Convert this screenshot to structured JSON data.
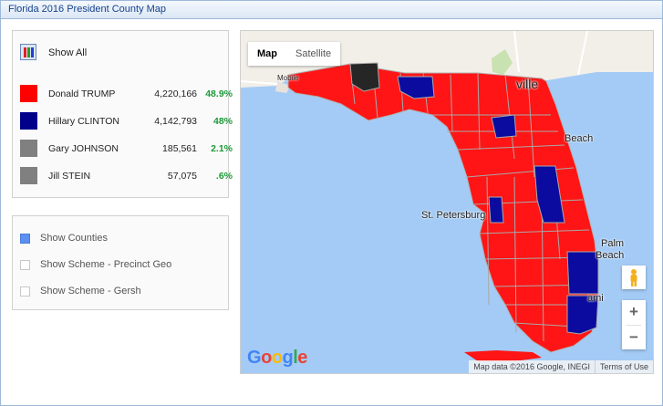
{
  "window": {
    "title": "Florida 2016 President  County Map"
  },
  "show_all": {
    "label": "Show All"
  },
  "candidates": [
    {
      "name": "Donald TRUMP",
      "votes": "4,220,166",
      "pct": "48.9%",
      "color": "#ff0000"
    },
    {
      "name": "Hillary CLINTON",
      "votes": "4,142,793",
      "pct": "48%",
      "color": "#00008b"
    },
    {
      "name": "Gary JOHNSON",
      "votes": "185,561",
      "pct": "2.1%",
      "color": "#808080"
    },
    {
      "name": "Jill STEIN",
      "votes": "57,075",
      "pct": ".6%",
      "color": "#808080"
    }
  ],
  "options": [
    {
      "label": "Show Counties",
      "checked": true
    },
    {
      "label": "Show Scheme - Precinct Geo",
      "checked": false
    },
    {
      "label": "Show Scheme - Gersh",
      "checked": false
    }
  ],
  "map": {
    "type_buttons": {
      "map": "Map",
      "satellite": "Satellite",
      "active": "Map"
    },
    "city_labels": {
      "jacksonville": "ville",
      "daytona": "Beach",
      "st_petersburg": "St. Petersburg",
      "west_palm": "Palm",
      "west_palm_2": "Beach",
      "miami": "ami",
      "mobile": "Mobile"
    },
    "zoom_in": "+",
    "zoom_out": "−",
    "attribution": "Map data ©2016 Google, INEGI",
    "terms": "Terms of Use",
    "logo": "Google"
  }
}
